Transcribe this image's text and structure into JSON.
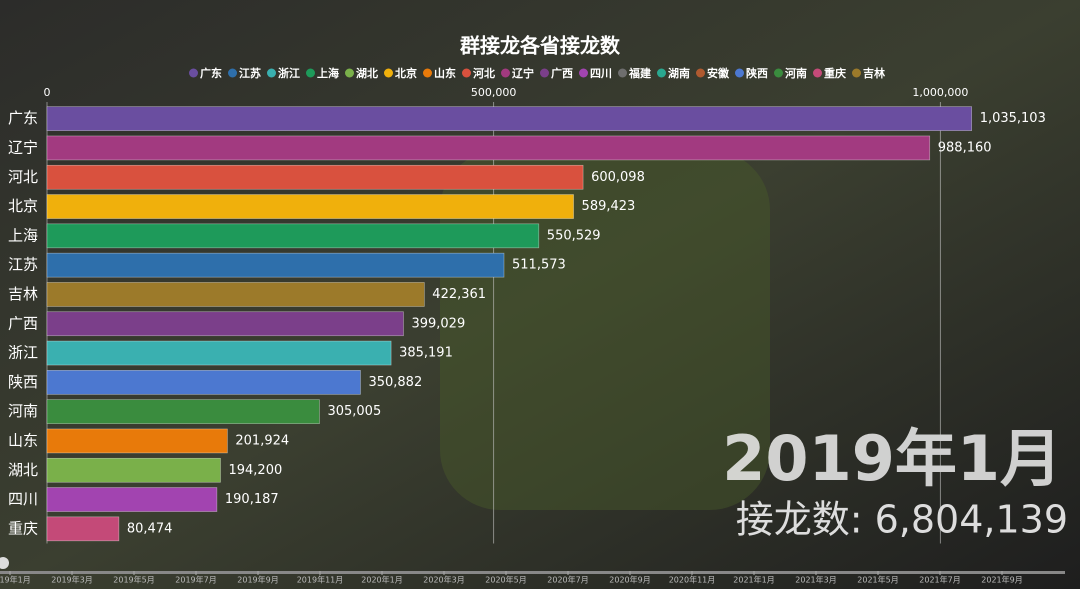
{
  "chart_data": {
    "type": "bar",
    "orientation": "horizontal",
    "title": "群接龙各省接龙数",
    "legend": [
      {
        "name": "广东",
        "color": "#6a4ea0"
      },
      {
        "name": "江苏",
        "color": "#2e6fab"
      },
      {
        "name": "浙江",
        "color": "#3ab0b0"
      },
      {
        "name": "上海",
        "color": "#1e9a5a"
      },
      {
        "name": "湖北",
        "color": "#7ab04a"
      },
      {
        "name": "北京",
        "color": "#f0b00c"
      },
      {
        "name": "山东",
        "color": "#e87a0a"
      },
      {
        "name": "河北",
        "color": "#d9513e"
      },
      {
        "name": "辽宁",
        "color": "#a23a80"
      },
      {
        "name": "广西",
        "color": "#7b3f8a"
      },
      {
        "name": "四川",
        "color": "#a244b0"
      },
      {
        "name": "福建",
        "color": "#6e6e6e"
      },
      {
        "name": "湖南",
        "color": "#2aa890"
      },
      {
        "name": "安徽",
        "color": "#b05a30"
      },
      {
        "name": "陕西",
        "color": "#4c78d0"
      },
      {
        "name": "河南",
        "color": "#3a8c3e"
      },
      {
        "name": "重庆",
        "color": "#c44a78"
      },
      {
        "name": "吉林",
        "color": "#9c7a2a"
      }
    ],
    "categories": [
      "广东",
      "辽宁",
      "河北",
      "北京",
      "上海",
      "江苏",
      "吉林",
      "广西",
      "浙江",
      "陕西",
      "河南",
      "山东",
      "湖北",
      "四川",
      "重庆"
    ],
    "values": [
      1035103,
      988160,
      600098,
      589423,
      550529,
      511573,
      422361,
      399029,
      385191,
      350882,
      305005,
      201924,
      194200,
      190187,
      80474
    ],
    "value_labels": [
      "1,035,103",
      "988,160",
      "600,098",
      "589,423",
      "550,529",
      "511,573",
      "422,361",
      "399,029",
      "385,191",
      "350,882",
      "305,005",
      "201,924",
      "194,200",
      "190,187",
      "80,474"
    ],
    "colors": [
      "#6a4ea0",
      "#a23a80",
      "#d9513e",
      "#f0b00c",
      "#1e9a5a",
      "#2e6fab",
      "#9c7a2a",
      "#7b3f8a",
      "#3ab0b0",
      "#4c78d0",
      "#3a8c3e",
      "#e87a0a",
      "#7ab04a",
      "#a244b0",
      "#c44a78"
    ],
    "xlim": [
      0,
      1050000
    ],
    "xticks": [
      0,
      {
        "value": 500000,
        "label": "500,000"
      },
      {
        "value": 1000000,
        "label": "1,000,000"
      }
    ],
    "grid": true,
    "date_label": "2019年1月",
    "total_label": "接龙数: 6,804,139",
    "timeline": [
      "2019年1月",
      "2019年3月",
      "2019年5月",
      "2019年7月",
      "2019年9月",
      "2019年11月",
      "2020年1月",
      "2020年3月",
      "2020年5月",
      "2020年7月",
      "2020年9月",
      "2020年11月",
      "2021年1月",
      "2021年3月",
      "2021年5月",
      "2021年7月",
      "2021年9月"
    ]
  }
}
